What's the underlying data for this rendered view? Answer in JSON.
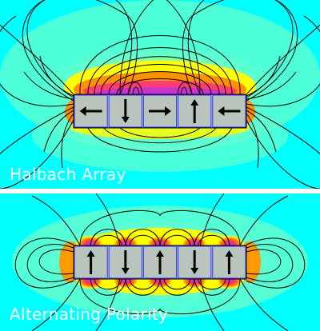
{
  "panels": [
    {
      "caption": "Halbach Array",
      "magnets": [
        "left",
        "down",
        "right",
        "up",
        "left"
      ],
      "field_bias": "top"
    },
    {
      "caption": "Alternating Polarity",
      "magnets": [
        "up",
        "down",
        "up",
        "down",
        "up"
      ],
      "field_bias": "symmetric"
    }
  ],
  "colors": {
    "background": "#00ffff",
    "field_low": "#66ffcc",
    "field_mid": "#ffff00",
    "field_high": "#ff8000",
    "field_peak": "#cc33cc",
    "magnet_fill": "#b8c4bc",
    "magnet_border": "#3333ff",
    "arrow": "#000000",
    "divider": "#ffffff",
    "caption": "#ffffff"
  }
}
